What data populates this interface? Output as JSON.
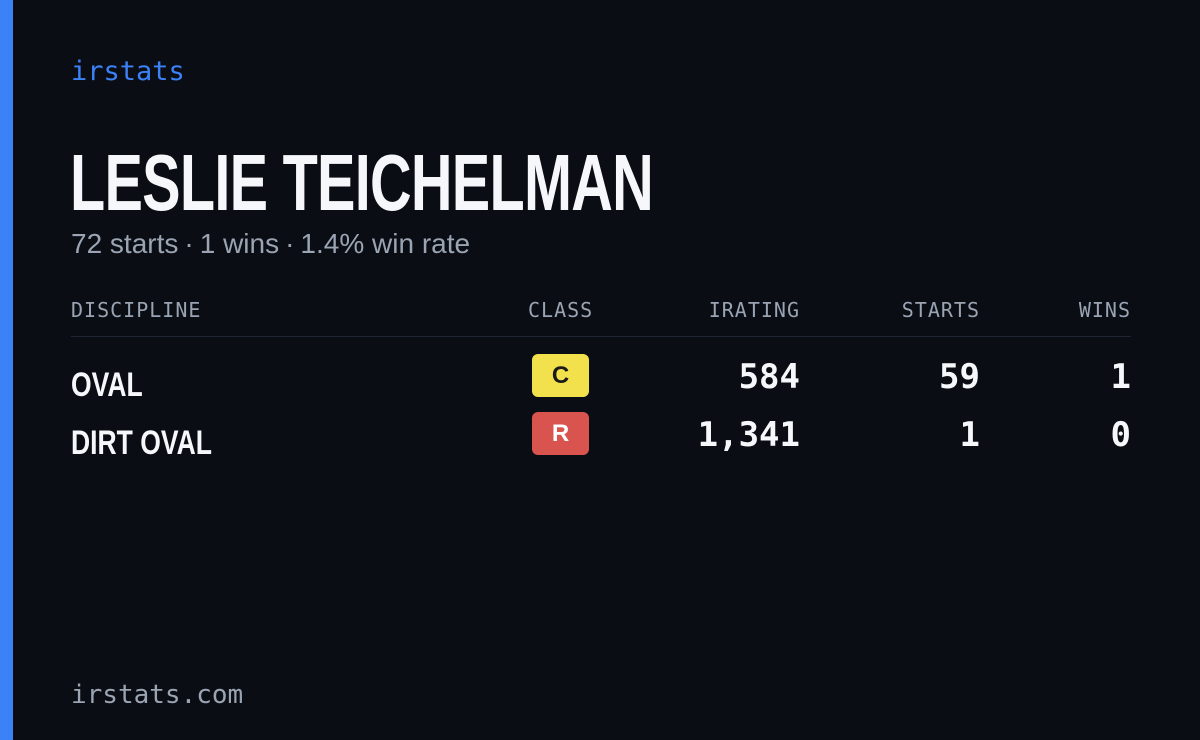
{
  "brand": "irstats",
  "driver": {
    "name": "LESLIE TEICHELMAN"
  },
  "summary": {
    "starts": "72 starts",
    "wins": "1 wins",
    "win_rate": "1.4% win rate",
    "separator": "·"
  },
  "table": {
    "headers": {
      "discipline": "DISCIPLINE",
      "class": "CLASS",
      "irating": "IRATING",
      "starts": "STARTS",
      "wins": "WINS"
    },
    "rows": [
      {
        "discipline": "OVAL",
        "class": "C",
        "class_color": "#f2e14c",
        "class_text_color": "#1a1a1a",
        "irating": "584",
        "starts": "59",
        "wins": "1"
      },
      {
        "discipline": "DIRT OVAL",
        "class": "R",
        "class_color": "#d9534f",
        "class_text_color": "#ffffff",
        "irating": "1,341",
        "starts": "1",
        "wins": "0"
      }
    ]
  },
  "footer": "irstats.com",
  "colors": {
    "accent": "#3b82f6",
    "background": "#0a0d14",
    "muted": "#9aa4b2",
    "text": "#f5f7fa"
  }
}
